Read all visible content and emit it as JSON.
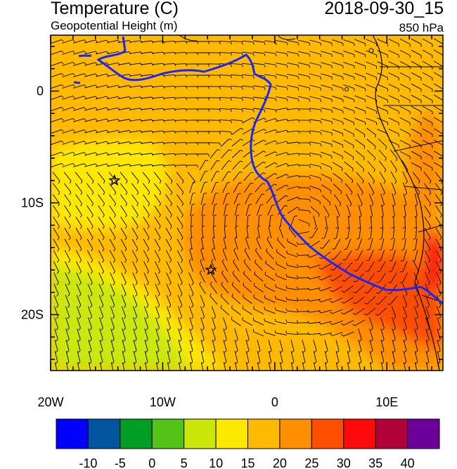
{
  "header": {
    "title": "Temperature (C)",
    "subtitle": "Geopotential Height (m)",
    "datetime": "2018-09-30_15",
    "level": "850 hPa"
  },
  "map": {
    "lon_range": [
      -20,
      15
    ],
    "lat_range": [
      -25,
      5
    ],
    "x_ticks": [
      {
        "lon": -20,
        "label": "20W"
      },
      {
        "lon": -10,
        "label": "10W"
      },
      {
        "lon": 0,
        "label": "0"
      },
      {
        "lon": 10,
        "label": "10E"
      }
    ],
    "y_ticks": [
      {
        "lat": 0,
        "label": "0"
      },
      {
        "lat": -10,
        "label": "10S"
      },
      {
        "lat": -20,
        "label": "20S"
      }
    ],
    "markers": [
      {
        "name": "star",
        "lon": -14.3,
        "lat": -8.0
      },
      {
        "name": "star",
        "lon": -5.7,
        "lat": -16.0
      }
    ]
  },
  "colorbar": {
    "colors": [
      "#0000ff",
      "#00559e",
      "#009e25",
      "#54c317",
      "#cbe709",
      "#ffe800",
      "#ffba00",
      "#ff8e00",
      "#ff4e00",
      "#ff0a0a",
      "#b2003a",
      "#6c0099"
    ],
    "labels": [
      "-10",
      "-5",
      "0",
      "5",
      "10",
      "15",
      "20",
      "25",
      "30",
      "35",
      "40"
    ]
  },
  "colors": {
    "land_shading": "#ffba00",
    "coastline_overlay": "#1a25ff",
    "wind_barbs": "#000000"
  }
}
